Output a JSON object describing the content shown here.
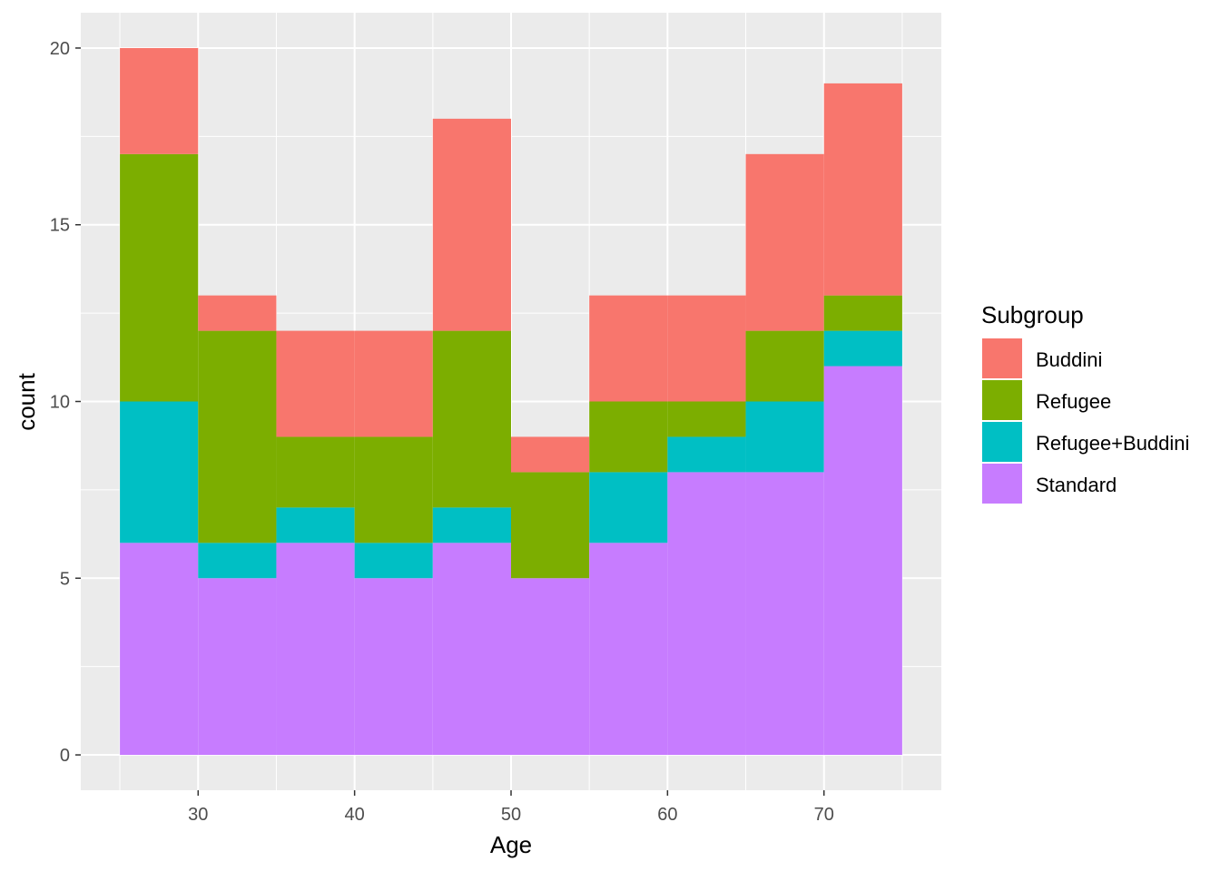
{
  "chart_data": {
    "type": "bar",
    "subtype": "stacked-histogram",
    "xlabel": "Age",
    "ylabel": "count",
    "xlim": [
      22.5,
      77.5
    ],
    "ylim": [
      -1,
      21
    ],
    "xticks": [
      30,
      40,
      50,
      60,
      70
    ],
    "yticks": [
      0,
      5,
      10,
      15,
      20
    ],
    "grid": true,
    "bin_width": 5,
    "bins": [
      [
        25,
        30
      ],
      [
        30,
        35
      ],
      [
        35,
        40
      ],
      [
        40,
        45
      ],
      [
        45,
        50
      ],
      [
        50,
        55
      ],
      [
        55,
        60
      ],
      [
        60,
        65
      ],
      [
        65,
        70
      ],
      [
        70,
        75
      ]
    ],
    "legend": {
      "title": "Subgroup",
      "position": "right"
    },
    "series": [
      {
        "name": "Standard",
        "color": "#C77CFF",
        "values": [
          6,
          5,
          6,
          5,
          6,
          5,
          6,
          8,
          8,
          11
        ]
      },
      {
        "name": "Refugee+Buddini",
        "color": "#00BFC4",
        "values": [
          4,
          1,
          1,
          1,
          1,
          0,
          2,
          1,
          2,
          1
        ]
      },
      {
        "name": "Refugee",
        "color": "#7CAE00",
        "values": [
          7,
          6,
          2,
          3,
          5,
          3,
          2,
          1,
          2,
          1
        ]
      },
      {
        "name": "Buddini",
        "color": "#F8766D",
        "values": [
          3,
          1,
          3,
          3,
          6,
          1,
          3,
          3,
          5,
          6
        ]
      }
    ],
    "legend_order": [
      "Buddini",
      "Refugee",
      "Refugee+Buddini",
      "Standard"
    ]
  }
}
